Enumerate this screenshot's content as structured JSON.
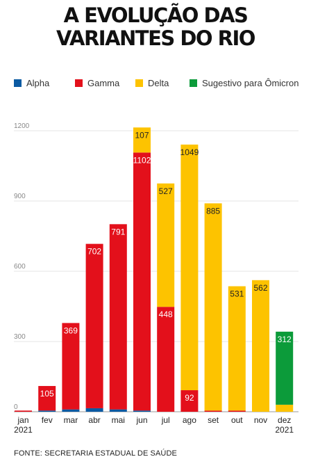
{
  "title_lines": [
    "A EVOLUÇÃO DAS",
    "VARIANTES DO RIO"
  ],
  "source": "FONTE: SECRETARIA ESTADUAL DE SAÚDE",
  "chart_data": {
    "type": "bar",
    "stacked": true,
    "categories": [
      "jan 2021",
      "fev",
      "mar",
      "abr",
      "mai",
      "jun",
      "jul",
      "ago",
      "set",
      "out",
      "nov",
      "dez 2021"
    ],
    "category_labels": [
      [
        "jan",
        "2021"
      ],
      [
        "fev"
      ],
      [
        "mar"
      ],
      [
        "abr"
      ],
      [
        "mai"
      ],
      [
        "jun"
      ],
      [
        "jul"
      ],
      [
        "ago"
      ],
      [
        "set"
      ],
      [
        "out"
      ],
      [
        "nov"
      ],
      [
        "dez",
        "2021"
      ]
    ],
    "series": [
      {
        "name": "Alpha",
        "color": "#0b5aa2",
        "values": [
          0,
          5,
          10,
          15,
          10,
          5,
          0,
          0,
          0,
          0,
          0,
          0
        ]
      },
      {
        "name": "Gamma",
        "color": "#e3101b",
        "values": [
          5,
          105,
          369,
          702,
          791,
          1102,
          448,
          92,
          5,
          5,
          0,
          0
        ]
      },
      {
        "name": "Delta",
        "color": "#fdc300",
        "values": [
          0,
          0,
          0,
          0,
          0,
          107,
          527,
          1049,
          885,
          531,
          562,
          30
        ]
      },
      {
        "name": "Sugestivo para Ômicron",
        "color": "#0c9b3a",
        "values": [
          0,
          0,
          0,
          0,
          0,
          0,
          0,
          0,
          0,
          0,
          0,
          312
        ]
      }
    ],
    "data_labels": [
      {
        "category": 1,
        "series": 1,
        "text": "105"
      },
      {
        "category": 2,
        "series": 1,
        "text": "369"
      },
      {
        "category": 3,
        "series": 1,
        "text": "702"
      },
      {
        "category": 4,
        "series": 1,
        "text": "791"
      },
      {
        "category": 5,
        "series": 1,
        "text": "1102"
      },
      {
        "category": 5,
        "series": 2,
        "text": "107"
      },
      {
        "category": 6,
        "series": 1,
        "text": "448"
      },
      {
        "category": 6,
        "series": 2,
        "text": "527"
      },
      {
        "category": 7,
        "series": 1,
        "text": "92"
      },
      {
        "category": 7,
        "series": 2,
        "text": "1049"
      },
      {
        "category": 8,
        "series": 2,
        "text": "885"
      },
      {
        "category": 9,
        "series": 2,
        "text": "531"
      },
      {
        "category": 10,
        "series": 2,
        "text": "562"
      },
      {
        "category": 11,
        "series": 3,
        "text": "312"
      }
    ],
    "y_ticks": [
      0,
      300,
      600,
      900,
      1200
    ],
    "ylim": [
      0,
      1200
    ],
    "grid": true,
    "legend_position": "top"
  }
}
